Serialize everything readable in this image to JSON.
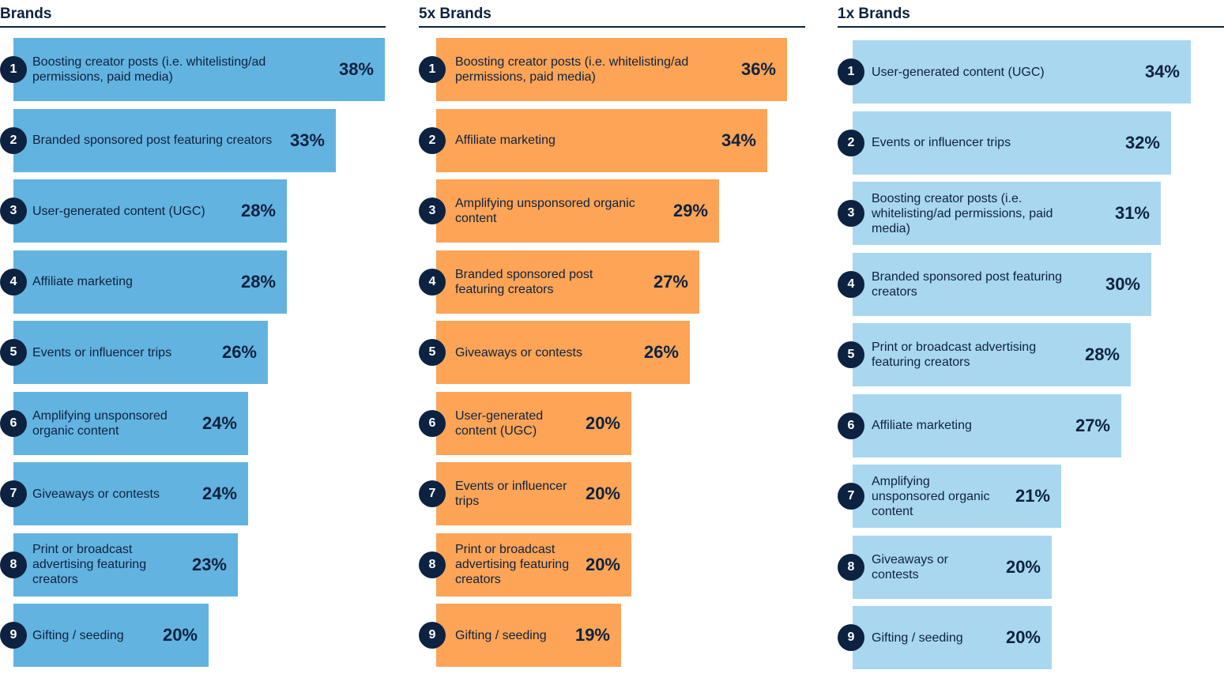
{
  "chart_data": [
    {
      "type": "bar",
      "orientation": "horizontal",
      "title": "Brands",
      "color": "#63b3e0",
      "xlim": [
        0,
        38
      ],
      "ranks": [
        "1",
        "2",
        "3",
        "4",
        "5",
        "6",
        "7",
        "8",
        "9"
      ],
      "categories": [
        "Boosting creator posts (i.e. whitelisting/ad permissions, paid media)",
        "Branded sponsored post featuring creators",
        "User-generated content (UGC)",
        "Affiliate marketing",
        "Events or influencer trips",
        "Amplifying unsponsored organic content",
        "Giveaways or contests",
        "Print or broadcast advertising featuring creators",
        "Gifting / seeding"
      ],
      "values": [
        38,
        33,
        28,
        28,
        26,
        24,
        24,
        23,
        20
      ],
      "value_labels": [
        "38%",
        "33%",
        "28%",
        "28%",
        "26%",
        "24%",
        "24%",
        "23%",
        "20%"
      ]
    },
    {
      "type": "bar",
      "orientation": "horizontal",
      "title": "5x Brands",
      "color": "#fda456",
      "xlim": [
        0,
        36
      ],
      "ranks": [
        "1",
        "2",
        "3",
        "4",
        "5",
        "6",
        "7",
        "8",
        "9"
      ],
      "categories": [
        "Boosting creator posts (i.e. whitelisting/ad permissions, paid media)",
        "Affiliate marketing",
        "Amplifying unsponsored organic content",
        "Branded sponsored post featuring creators",
        "Giveaways or contests",
        "User-generated content (UGC)",
        "Events or influencer trips",
        "Print or broadcast advertising featuring creators",
        "Gifting / seeding"
      ],
      "values": [
        36,
        34,
        29,
        27,
        26,
        20,
        20,
        20,
        19
      ],
      "value_labels": [
        "36%",
        "34%",
        "29%",
        "27%",
        "26%",
        "20%",
        "20%",
        "20%",
        "19%"
      ]
    },
    {
      "type": "bar",
      "orientation": "horizontal",
      "title": "1x Brands",
      "color": "#a9d7f0",
      "xlim": [
        0,
        34
      ],
      "ranks": [
        "1",
        "2",
        "3",
        "4",
        "5",
        "6",
        "7",
        "8",
        "9"
      ],
      "categories": [
        "User-generated content (UGC)",
        "Events or influencer trips",
        "Boosting creator posts (i.e. whitelisting/ad permissions, paid media)",
        "Branded sponsored post featuring creators",
        "Print or broadcast advertising featuring creators",
        "Affiliate marketing",
        "Amplifying unsponsored organic content",
        "Giveaways or contests",
        "Gifting / seeding"
      ],
      "values": [
        34,
        32,
        31,
        30,
        28,
        27,
        21,
        20,
        20
      ],
      "value_labels": [
        "34%",
        "32%",
        "31%",
        "30%",
        "28%",
        "27%",
        "21%",
        "20%",
        "20%"
      ]
    }
  ],
  "badge_color": "#0d2240",
  "text_color": "#0d2240"
}
